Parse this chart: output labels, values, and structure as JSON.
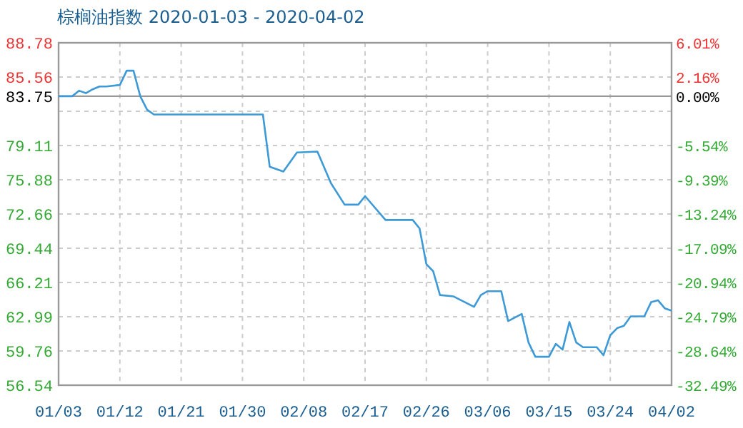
{
  "chart_data": {
    "type": "line",
    "title": "棕榈油指数 2020-01-03 - 2020-04-02",
    "x": [
      "2020-01-03",
      "2020-01-05",
      "2020-01-06",
      "2020-01-07",
      "2020-01-08",
      "2020-01-09",
      "2020-01-10",
      "2020-01-12",
      "2020-01-13",
      "2020-01-14",
      "2020-01-15",
      "2020-01-16",
      "2020-01-17",
      "2020-02-02",
      "2020-02-03",
      "2020-02-05",
      "2020-02-07",
      "2020-02-10",
      "2020-02-12",
      "2020-02-14",
      "2020-02-16",
      "2020-02-17",
      "2020-02-20",
      "2020-02-24",
      "2020-02-25",
      "2020-02-26",
      "2020-02-27",
      "2020-02-28",
      "2020-03-01",
      "2020-03-04",
      "2020-03-05",
      "2020-03-06",
      "2020-03-08",
      "2020-03-09",
      "2020-03-11",
      "2020-03-12",
      "2020-03-13",
      "2020-03-15",
      "2020-03-16",
      "2020-03-17",
      "2020-03-18",
      "2020-03-19",
      "2020-03-20",
      "2020-03-22",
      "2020-03-23",
      "2020-03-24",
      "2020-03-25",
      "2020-03-26",
      "2020-03-27",
      "2020-03-29",
      "2020-03-30",
      "2020-03-31",
      "2020-04-01",
      "2020-04-02"
    ],
    "series": [
      {
        "color": "#3d9ad6",
        "values": [
          83.75,
          83.75,
          84.27,
          84.04,
          84.4,
          84.67,
          84.67,
          84.81,
          86.15,
          86.15,
          83.73,
          82.47,
          82.03,
          82.03,
          77.11,
          76.66,
          78.45,
          78.54,
          75.55,
          73.54,
          73.54,
          74.34,
          72.1,
          72.1,
          71.3,
          67.94,
          67.27,
          65.03,
          64.9,
          63.92,
          65.03,
          65.39,
          65.39,
          62.58,
          63.25,
          60.56,
          59.22,
          59.22,
          60.43,
          59.89,
          62.49,
          60.56,
          60.12,
          60.12,
          59.36,
          61.24,
          61.91,
          62.13,
          63.02,
          63.02,
          64.36,
          64.54,
          63.78,
          63.56
        ]
      }
    ],
    "xlim": [
      "2020-01-03",
      "2020-04-02"
    ],
    "xticks": [
      {
        "value": "2020-01-03",
        "label": "01/03"
      },
      {
        "value": "2020-01-12",
        "label": "01/12"
      },
      {
        "value": "2020-01-21",
        "label": "01/21"
      },
      {
        "value": "2020-01-30",
        "label": "01/30"
      },
      {
        "value": "2020-02-08",
        "label": "02/08"
      },
      {
        "value": "2020-02-17",
        "label": "02/17"
      },
      {
        "value": "2020-02-26",
        "label": "02/26"
      },
      {
        "value": "2020-03-06",
        "label": "03/06"
      },
      {
        "value": "2020-03-15",
        "label": "03/15"
      },
      {
        "value": "2020-03-24",
        "label": "03/24"
      },
      {
        "value": "2020-04-02",
        "label": "04/02"
      }
    ],
    "ylim": [
      56.54,
      88.78
    ],
    "yticks": [
      88.78,
      85.56,
      {
        "value": 82.33,
        "label": null
      },
      79.11,
      75.88,
      72.66,
      69.44,
      66.21,
      62.99,
      59.76,
      56.54
    ],
    "y2lim": [
      -32.49,
      6.01
    ],
    "y2ticks": [
      {
        "value": 6.01,
        "label": "6.01%"
      },
      {
        "value": 2.16,
        "label": "2.16%"
      },
      {
        "value": 0,
        "label": "0.00%"
      },
      {
        "value": -1.69,
        "label": null
      },
      {
        "value": -5.54,
        "label": "-5.54%"
      },
      {
        "value": -9.39,
        "label": "-9.39%"
      },
      {
        "value": -13.24,
        "label": "-13.24%"
      },
      {
        "value": -17.09,
        "label": "-17.09%"
      },
      {
        "value": -20.94,
        "label": "-20.94%"
      },
      {
        "value": -24.79,
        "label": "-24.79%"
      },
      {
        "value": -28.64,
        "label": "-28.64%"
      },
      {
        "value": -32.49,
        "label": "-32.49%"
      }
    ],
    "ref_lines": [
      {
        "axis": "y",
        "value": 83.75,
        "label": "83.75",
        "color": "#999999"
      }
    ],
    "grid": true,
    "marker": "none",
    "line_style": "solid"
  }
}
